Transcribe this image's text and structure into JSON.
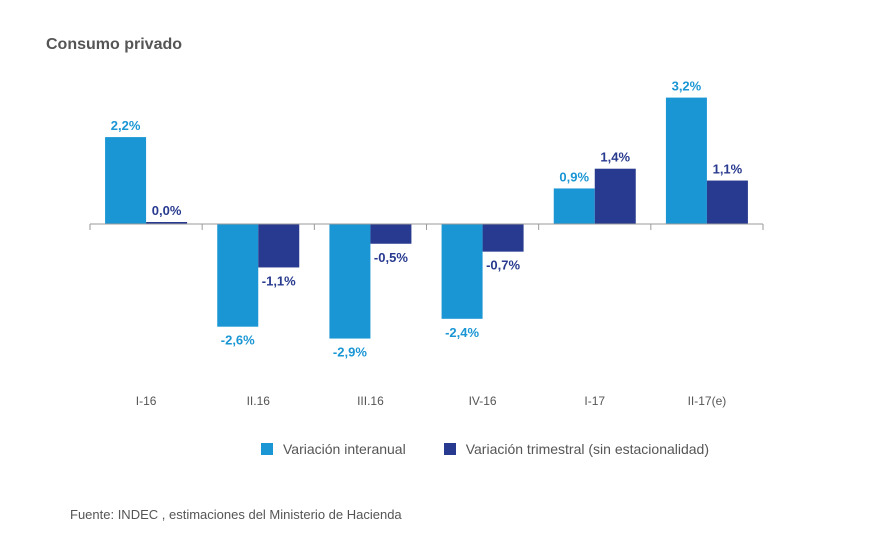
{
  "chart_data": {
    "type": "bar",
    "title": "Consumo privado",
    "xlabel": "",
    "ylabel": "",
    "categories": [
      "I-16",
      "II.16",
      "III.16",
      "IV-16",
      "I-17",
      "II-17(e)"
    ],
    "series": [
      {
        "name": "Variación interanual",
        "color": "#1a96d4",
        "values": [
          2.2,
          -2.6,
          -2.9,
          -2.4,
          0.9,
          3.2
        ],
        "labels": [
          "2,2%",
          "-2,6%",
          "-2,9%",
          "-2,4%",
          "0,9%",
          "3,2%"
        ]
      },
      {
        "name": "Variación trimestral (sin estacionalidad)",
        "color": "#283a8f",
        "values": [
          0.0,
          -1.1,
          -0.5,
          -0.7,
          1.4,
          1.1
        ],
        "labels": [
          "0,0%",
          "-1,1%",
          "-0,5%",
          "-0,7%",
          "1,4%",
          "1,1%"
        ]
      }
    ],
    "ylim": [
      -4,
      4
    ],
    "grid": false,
    "legend_position": "bottom"
  },
  "source": "Fuente: INDEC , estimaciones del Ministerio de Hacienda"
}
